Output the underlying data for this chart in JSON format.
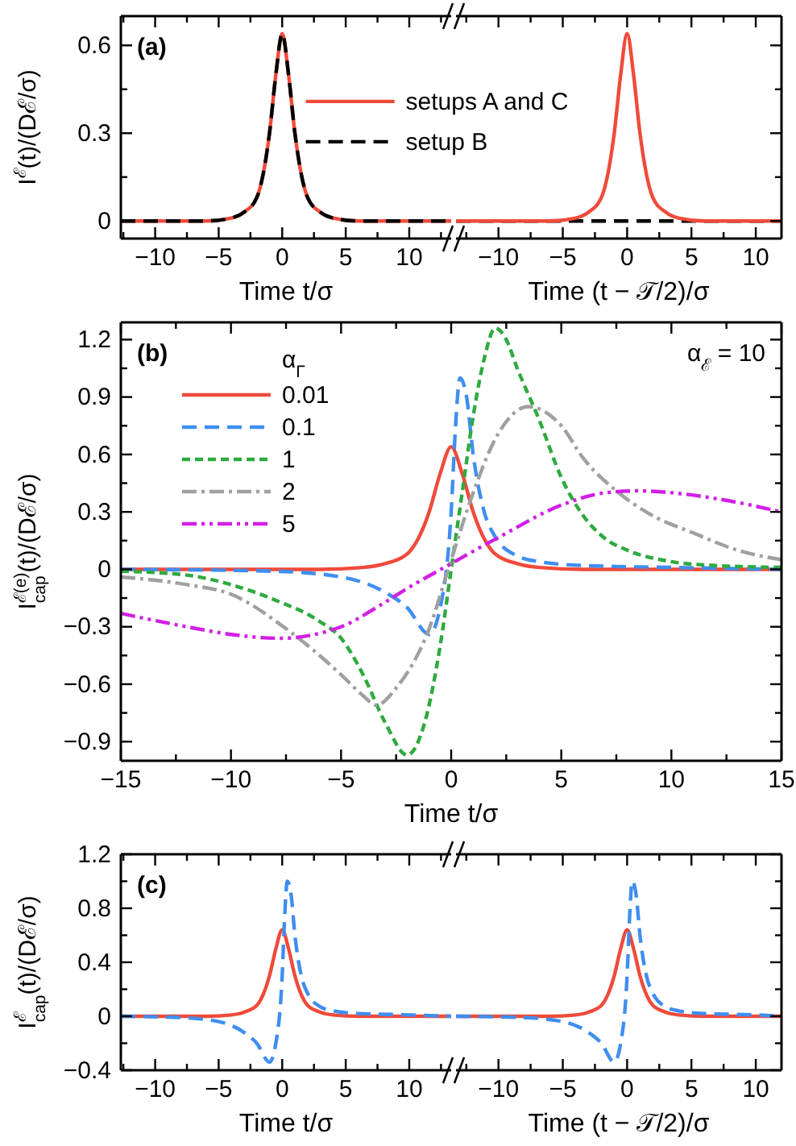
{
  "chart_data": [
    {
      "type": "line",
      "ylabel": "I$^{ℰ}$(t)/(Dℰ/σ)",
      "xlabel": "Time t/σ",
      "annotations": [
        "(a)"
      ],
      "legend": "right",
      "xlim": [
        -12.7,
        13.3
      ],
      "ylim": [
        -0.06,
        0.7
      ],
      "xticks": [
        {
          "value": -12.5,
          "label": null
        },
        {
          "value": -10,
          "label": "−10"
        },
        {
          "value": -7.5,
          "label": null
        },
        {
          "value": -5,
          "label": "−5"
        },
        {
          "value": -2.5,
          "label": null
        },
        0,
        {
          "value": 2.5,
          "label": null
        },
        5,
        {
          "value": 7.5,
          "label": null
        },
        10,
        {
          "value": 12.5,
          "label": null
        }
      ],
      "yticks": [
        0,
        {
          "value": 0.15,
          "label": null
        },
        0.3,
        {
          "value": 0.45,
          "label": null
        },
        0.6
      ],
      "series": [
        {
          "name": "setups A and C",
          "color": "#f04a3a",
          "line_style": "solid",
          "x": [
            -12.7,
            -6,
            -4,
            -3,
            -2,
            -1.5,
            -1,
            -0.5,
            0,
            0.5,
            1,
            1.5,
            2,
            3,
            4,
            6,
            13.3
          ],
          "values": [
            0,
            0,
            0.01,
            0.03,
            0.08,
            0.16,
            0.3,
            0.5,
            0.64,
            0.5,
            0.3,
            0.16,
            0.08,
            0.03,
            0.01,
            0,
            0
          ]
        },
        {
          "name": "setup B",
          "color": "#000000",
          "line_style": "dashed",
          "x": [
            -12.7,
            -6,
            -4,
            -3,
            -2,
            -1.5,
            -1,
            -0.5,
            0,
            0.5,
            1,
            1.5,
            2,
            3,
            4,
            6,
            13.3
          ],
          "values": [
            0,
            0,
            0.01,
            0.03,
            0.08,
            0.16,
            0.3,
            0.5,
            0.64,
            0.5,
            0.3,
            0.16,
            0.08,
            0.03,
            0.01,
            0,
            0
          ]
        }
      ]
    },
    {
      "type": "line",
      "xlabel": "Time (t − 𝒯/2)/σ",
      "tick_labels": "x",
      "xlim": [
        -13.3,
        12
      ],
      "ylim": [
        -0.06,
        0.7
      ],
      "xticks": [
        {
          "value": -12.5,
          "label": null
        },
        {
          "value": -10,
          "label": "−10"
        },
        {
          "value": -7.5,
          "label": null
        },
        {
          "value": -5,
          "label": "−5"
        },
        {
          "value": -2.5,
          "label": null
        },
        0,
        {
          "value": 2.5,
          "label": null
        },
        5,
        {
          "value": 7.5,
          "label": null
        },
        10
      ],
      "yticks": [
        0,
        {
          "value": 0.15,
          "label": null
        },
        0.3,
        {
          "value": 0.45,
          "label": null
        },
        0.6
      ],
      "series": [
        {
          "color": "#000000",
          "line_style": "dashed",
          "x": [
            -13.3,
            0,
            12
          ],
          "values": [
            0,
            0,
            0
          ]
        },
        {
          "color": "#f04a3a",
          "line_style": "solid",
          "x": [
            -13.3,
            -6,
            -4,
            -3,
            -2,
            -1.5,
            -1,
            -0.5,
            0,
            0.5,
            1,
            1.5,
            2,
            3,
            4,
            6,
            12
          ],
          "values": [
            0,
            0,
            0.01,
            0.03,
            0.08,
            0.16,
            0.3,
            0.5,
            0.64,
            0.5,
            0.3,
            0.16,
            0.08,
            0.03,
            0.01,
            0,
            0
          ]
        }
      ]
    },
    {
      "type": "line",
      "ylabel": "I$^{ℰ(e)}$$_{cap}$(t)/(Dℰ/σ)",
      "xlabel": "Time t/σ",
      "annotations": [
        "(b)",
        "α$_{ℰ}$ = 10"
      ],
      "legend": "top left",
      "legend_title": "α$_{Γ}$",
      "xlim": [
        -15,
        15
      ],
      "ylim": [
        -1.0,
        1.29
      ],
      "xticks": [
        {
          "value": -15,
          "label": "−15"
        },
        {
          "value": -12.5,
          "label": null
        },
        {
          "value": -10,
          "label": "−10"
        },
        {
          "value": -7.5,
          "label": null
        },
        {
          "value": -5,
          "label": "−5"
        },
        {
          "value": -2.5,
          "label": null
        },
        0,
        {
          "value": 2.5,
          "label": null
        },
        5,
        {
          "value": 7.5,
          "label": null
        },
        10,
        {
          "value": 12.5,
          "label": null
        },
        15
      ],
      "yticks": [
        {
          "value": -0.9,
          "label": "−0.9"
        },
        {
          "value": -0.75,
          "label": null
        },
        {
          "value": -0.6,
          "label": "−0.6"
        },
        {
          "value": -0.45,
          "label": null
        },
        {
          "value": -0.3,
          "label": "−0.3"
        },
        {
          "value": -0.15,
          "label": null
        },
        0,
        {
          "value": 0.15,
          "label": null
        },
        0.3,
        {
          "value": 0.45,
          "label": null
        },
        0.6,
        {
          "value": 0.75,
          "label": null
        },
        0.9,
        {
          "value": 1.05,
          "label": null
        },
        1.2
      ],
      "series": [
        {
          "name": "0.01",
          "color": "#f04a3a",
          "line_style": "solid",
          "x": [
            -15,
            -6,
            -4,
            -3,
            -2,
            -1.5,
            -1,
            -0.5,
            0,
            0.5,
            1,
            1.5,
            2,
            3,
            4,
            6,
            15
          ],
          "values": [
            0,
            0,
            0.01,
            0.03,
            0.08,
            0.16,
            0.3,
            0.5,
            0.64,
            0.5,
            0.3,
            0.16,
            0.08,
            0.03,
            0.01,
            0,
            0
          ]
        },
        {
          "name": "0.1",
          "color": "#3f8ef0",
          "line_style": "dashed",
          "x": [
            -15,
            -8,
            -5,
            -3,
            -2,
            -1,
            -0.5,
            0,
            0.2,
            0.4,
            0.7,
            1,
            1.5,
            2,
            3,
            4,
            6,
            10,
            15
          ],
          "values": [
            0,
            -0.01,
            -0.04,
            -0.12,
            -0.2,
            -0.34,
            -0.2,
            0.3,
            0.75,
            1.0,
            0.9,
            0.6,
            0.3,
            0.17,
            0.07,
            0.04,
            0.02,
            0.01,
            0
          ]
        },
        {
          "name": "1",
          "color": "#2eaa3e",
          "line_style": "dotted",
          "x": [
            -15,
            -12,
            -10,
            -8,
            -6,
            -5,
            -4,
            -3,
            -2,
            -1.2,
            -0.5,
            0,
            0.5,
            1,
            1.5,
            2,
            2.5,
            3,
            4,
            5,
            6,
            7,
            8,
            10,
            12,
            15
          ],
          "values": [
            -0.01,
            -0.03,
            -0.08,
            -0.16,
            -0.27,
            -0.36,
            -0.55,
            -0.8,
            -0.97,
            -0.8,
            -0.4,
            0,
            0.4,
            0.8,
            1.1,
            1.26,
            1.2,
            1.05,
            0.78,
            0.48,
            0.28,
            0.16,
            0.1,
            0.04,
            0.02,
            0.01
          ]
        },
        {
          "name": "2",
          "color": "#a0a0a0",
          "line_style": "dashdot",
          "x": [
            -15,
            -12,
            -10,
            -7.5,
            -5,
            -4,
            -3.4,
            -2.5,
            -1,
            0,
            1,
            2,
            3.5,
            5,
            6,
            7.5,
            9,
            11,
            13,
            15
          ],
          "values": [
            -0.04,
            -0.08,
            -0.13,
            -0.31,
            -0.55,
            -0.66,
            -0.71,
            -0.62,
            -0.31,
            0.05,
            0.4,
            0.68,
            0.85,
            0.75,
            0.58,
            0.41,
            0.29,
            0.19,
            0.1,
            0.05
          ]
        },
        {
          "name": "5",
          "color": "#d21fe6",
          "line_style": "dashdotdot",
          "x": [
            -15,
            -12,
            -10,
            -7.8,
            -5,
            -3.4,
            -2,
            0,
            2.2,
            5.1,
            7,
            8.5,
            10,
            12,
            15
          ],
          "values": [
            -0.23,
            -0.3,
            -0.34,
            -0.36,
            -0.3,
            -0.2,
            -0.1,
            0.03,
            0.17,
            0.34,
            0.4,
            0.41,
            0.4,
            0.37,
            0.3
          ]
        }
      ]
    },
    {
      "type": "line",
      "ylabel": "I$^{ℰ}$$_{cap}$(t)/(Dℰ/σ)",
      "xlabel": "Time t/σ",
      "annotations": [
        "(c)"
      ],
      "xlim": [
        -12.7,
        13.3
      ],
      "ylim": [
        -0.4,
        1.2
      ],
      "xticks": [
        {
          "value": -12.5,
          "label": null
        },
        {
          "value": -10,
          "label": "−10"
        },
        {
          "value": -7.5,
          "label": null
        },
        {
          "value": -5,
          "label": "−5"
        },
        {
          "value": -2.5,
          "label": null
        },
        0,
        {
          "value": 2.5,
          "label": null
        },
        5,
        {
          "value": 7.5,
          "label": null
        },
        10,
        {
          "value": 12.5,
          "label": null
        }
      ],
      "yticks": [
        {
          "value": -0.4,
          "label": "−0.4"
        },
        {
          "value": -0.2,
          "label": null
        },
        0,
        {
          "value": 0.2,
          "label": null
        },
        0.4,
        {
          "value": 0.6,
          "label": null
        },
        0.8,
        {
          "value": 1.0,
          "label": null
        },
        1.2
      ],
      "series": [
        {
          "color": "#f04a3a",
          "line_style": "solid",
          "x": [
            -12.7,
            -6,
            -4,
            -3,
            -2,
            -1.5,
            -1,
            -0.5,
            0,
            0.5,
            1,
            1.5,
            2,
            3,
            4,
            6,
            13.3
          ],
          "values": [
            0,
            0,
            0.01,
            0.03,
            0.08,
            0.16,
            0.3,
            0.5,
            0.64,
            0.5,
            0.3,
            0.16,
            0.08,
            0.03,
            0.01,
            0,
            0
          ]
        },
        {
          "color": "#3f8ef0",
          "line_style": "dashed",
          "x": [
            -12.7,
            -8,
            -5,
            -3,
            -2,
            -1,
            -0.5,
            0,
            0.2,
            0.4,
            0.7,
            1,
            1.5,
            2,
            3,
            4,
            6,
            10,
            13.3
          ],
          "values": [
            0,
            -0.01,
            -0.04,
            -0.12,
            -0.2,
            -0.34,
            -0.2,
            0.3,
            0.75,
            1.0,
            0.9,
            0.6,
            0.3,
            0.17,
            0.07,
            0.04,
            0.02,
            0.01,
            0
          ]
        }
      ]
    },
    {
      "type": "line",
      "xlabel": "Time (t − 𝒯/2)/σ",
      "tick_labels": "x",
      "xlim": [
        -13.3,
        12
      ],
      "ylim": [
        -0.4,
        1.2
      ],
      "xticks": [
        {
          "value": -12.5,
          "label": null
        },
        {
          "value": -10,
          "label": "−10"
        },
        {
          "value": -7.5,
          "label": null
        },
        {
          "value": -5,
          "label": "−5"
        },
        {
          "value": -2.5,
          "label": null
        },
        0,
        {
          "value": 2.5,
          "label": null
        },
        5,
        {
          "value": 7.5,
          "label": null
        },
        10
      ],
      "yticks": [
        -0.4,
        {
          "value": -0.2,
          "label": null
        },
        0,
        {
          "value": 0.2,
          "label": null
        },
        0.4,
        {
          "value": 0.6,
          "label": null
        },
        0.8,
        {
          "value": 1.0,
          "label": null
        },
        1.2
      ],
      "series": [
        {
          "color": "#f04a3a",
          "line_style": "solid",
          "x": [
            -13.3,
            -6,
            -4,
            -3,
            -2,
            -1.5,
            -1,
            -0.5,
            0,
            0.5,
            1,
            1.5,
            2,
            3,
            4,
            6,
            12
          ],
          "values": [
            0,
            0,
            0.01,
            0.03,
            0.08,
            0.16,
            0.3,
            0.5,
            0.64,
            0.5,
            0.3,
            0.16,
            0.08,
            0.03,
            0.01,
            0,
            0
          ]
        },
        {
          "color": "#3f8ef0",
          "line_style": "dashed",
          "x": [
            -13.3,
            -8,
            -5,
            -3,
            -2,
            -1,
            -0.5,
            0,
            0.2,
            0.4,
            0.7,
            1,
            1.5,
            2,
            3,
            4,
            6,
            10,
            12
          ],
          "values": [
            0,
            -0.01,
            -0.04,
            -0.12,
            -0.2,
            -0.34,
            -0.2,
            0.3,
            0.75,
            1.0,
            0.9,
            0.6,
            0.3,
            0.17,
            0.07,
            0.04,
            0.02,
            0.01,
            0
          ]
        }
      ]
    }
  ]
}
